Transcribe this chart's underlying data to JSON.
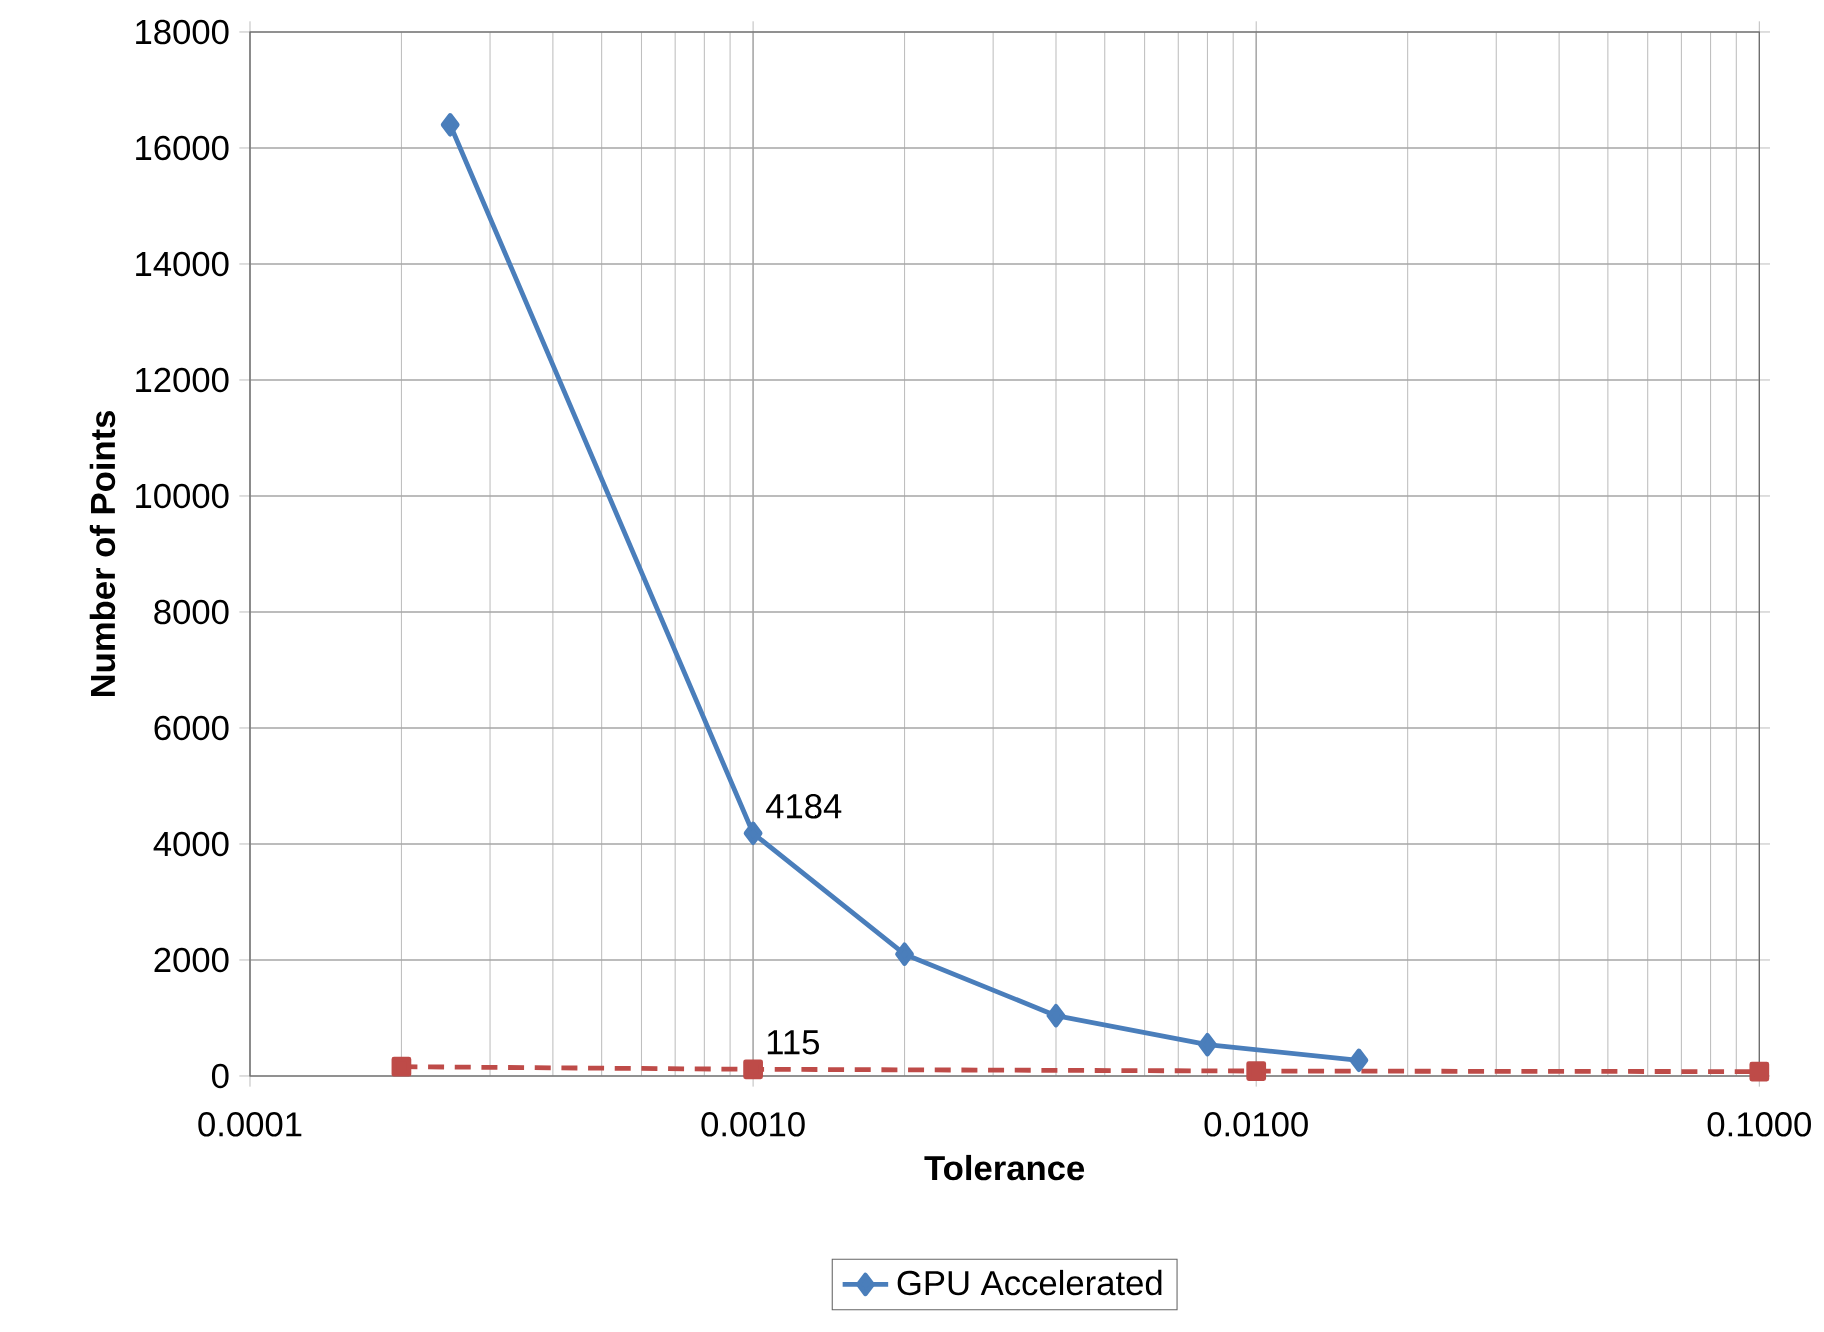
{
  "chart_data": {
    "type": "line",
    "xlabel": "Tolerance",
    "ylabel": "Number of Points",
    "log": "x",
    "xlim": [
      0.0001,
      0.1
    ],
    "xticks": [
      {
        "value": 0.0001,
        "label": "0.0001"
      },
      {
        "value": 0.001,
        "label": "0.0010"
      },
      {
        "value": 0.01,
        "label": "0.0100"
      },
      {
        "value": 0.1,
        "label": "0.1000"
      }
    ],
    "ylim": [
      0,
      18000
    ],
    "yticks": [
      0,
      2000,
      4000,
      6000,
      8000,
      10000,
      12000,
      14000,
      16000,
      18000
    ],
    "grid": true,
    "legend": "bottom",
    "series": [
      {
        "name": "GPU Accelerated",
        "color": "#4a7ebb",
        "marker": "diamond",
        "line_style": "solid",
        "x": [
          0.00025,
          0.001,
          0.002,
          0.004,
          0.008,
          0.016
        ],
        "values": [
          16400,
          4184,
          2100,
          1040,
          540,
          270
        ]
      },
      {
        "color": "#be4b48",
        "marker": "square",
        "line_style": "dashed",
        "x": [
          0.0002,
          0.001,
          0.01,
          0.1
        ],
        "values": [
          160,
          115,
          85,
          75
        ]
      }
    ],
    "annotations": [
      {
        "text": "4184",
        "x": 0.001,
        "y": 4184
      },
      {
        "text": "115",
        "x": 0.001,
        "y": 115
      }
    ]
  }
}
